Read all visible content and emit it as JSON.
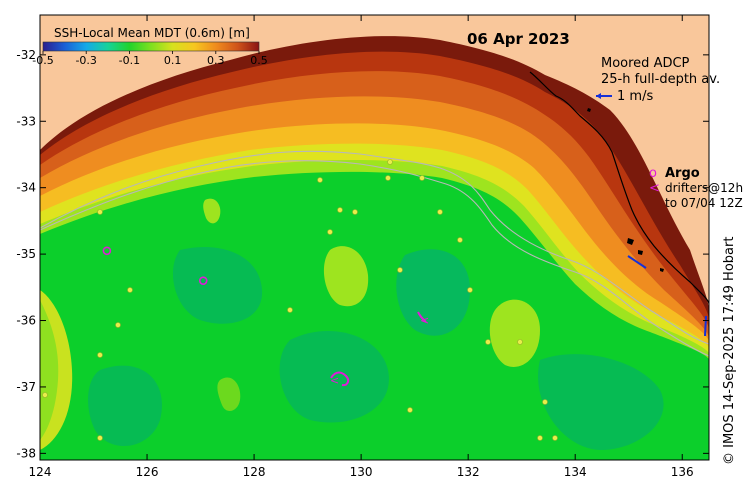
{
  "title": "SSH-Local Mean MDT (0.6m) [m]",
  "date": "06 Apr 2023",
  "colorbar": {
    "ticks": [
      "-0.5",
      "-0.3",
      "-0.1",
      "0.1",
      "0.3",
      "0.5"
    ],
    "range": [
      -0.5,
      0.5
    ],
    "colors": [
      "#2b1d8f",
      "#1b5fd6",
      "#15a9e8",
      "#16d39a",
      "#22d32c",
      "#7ee01f",
      "#d7e11e",
      "#f6c71f",
      "#f08c1e",
      "#d0541a",
      "#8a1414"
    ]
  },
  "axes": {
    "x_ticks": [
      "124",
      "126",
      "128",
      "130",
      "132",
      "134",
      "136"
    ],
    "y_ticks": [
      "-32",
      "-33",
      "-34",
      "-35",
      "-36",
      "-37",
      "-38"
    ],
    "lon_range": [
      124,
      136.5
    ],
    "lat_range": [
      -38.1,
      -31.4
    ]
  },
  "legend": {
    "adcp_title": "Moored ADCP",
    "adcp_sub": "25-h full-depth av.",
    "adcp_scale": "1 m/s",
    "argo_symbol": "o",
    "argo_label": "Argo",
    "drifter_symbol": "<",
    "drifter_line1": "drifters@12h",
    "drifter_line2": "to 07/04 12Z"
  },
  "argo_floats": [
    {
      "lon": 125.25,
      "lat": -34.95
    },
    {
      "lon": 127.05,
      "lat": -35.4
    }
  ],
  "credit": "© IMOS 14-Sep-2025 17:49 Hobart",
  "palette": {
    "land": "#f9c79b",
    "ocean_base": "#0ccf2b",
    "argo": "#e01bd8",
    "adcp": "#1530d8",
    "isobath": "#b4b4b4"
  }
}
